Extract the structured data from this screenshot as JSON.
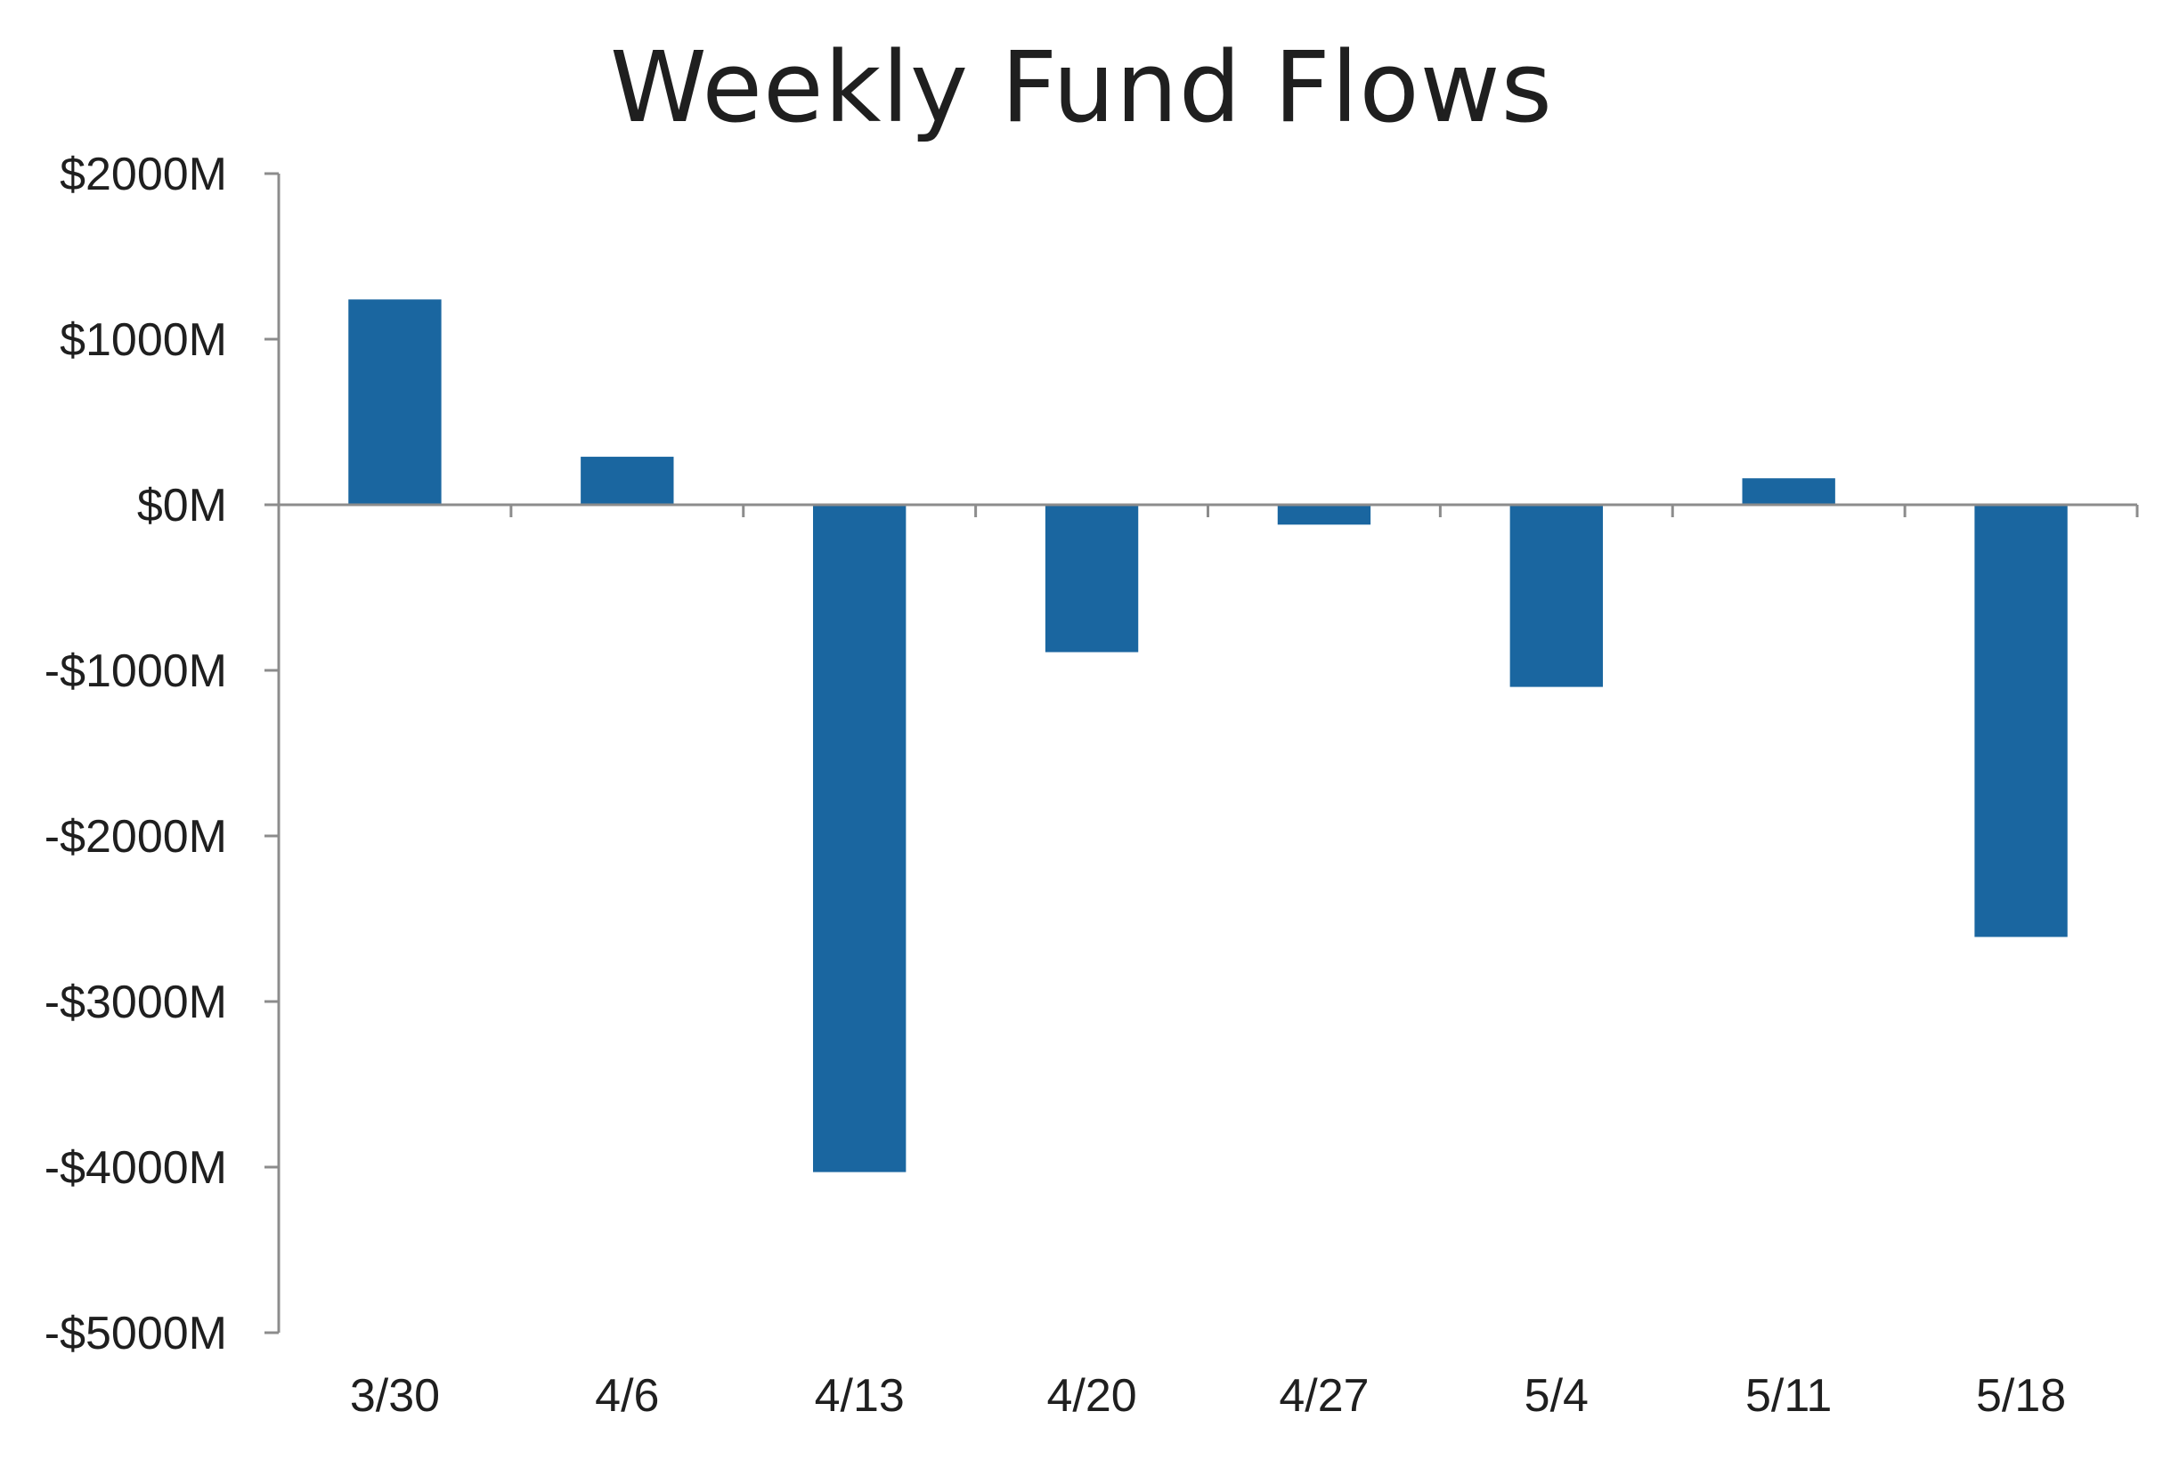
{
  "chart_data": {
    "type": "bar",
    "title": "Weekly Fund Flows",
    "xlabel": "",
    "ylabel": "",
    "categories": [
      "3/30",
      "4/6",
      "4/13",
      "4/20",
      "4/27",
      "5/4",
      "5/11",
      "5/18"
    ],
    "values": [
      1240,
      290,
      -4030,
      -890,
      -120,
      -1100,
      160,
      -2610
    ],
    "ylim": [
      -5000,
      2000
    ],
    "yticks": [
      2000,
      1000,
      0,
      -1000,
      -2000,
      -3000,
      -4000,
      -5000
    ],
    "ytick_labels": [
      "$2000M",
      "$1000M",
      "$0M",
      "-$1000M",
      "-$2000M",
      "-$3000M",
      "-$4000M",
      "-$5000M"
    ],
    "grid": false,
    "legend": "none",
    "bar_color": "#1a66a0",
    "axis_color": "#8c8c8c"
  }
}
